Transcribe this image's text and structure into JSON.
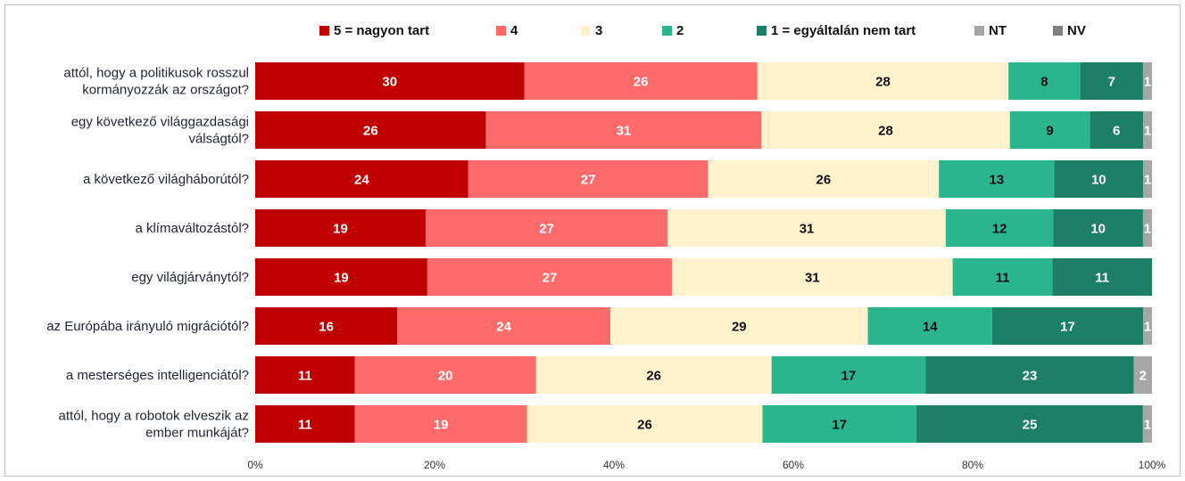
{
  "chart_data": {
    "type": "bar",
    "orientation": "horizontal",
    "stacked": true,
    "percent_stacked": true,
    "legend_position": "top",
    "categories": [
      "attól, hogy a politikusok rosszul kormányozzák az országot?",
      "egy következő világgazdasági válságtól?",
      "a következő világháborútól?",
      "a klímaváltozástól?",
      "egy világjárványtól?",
      "az Európába irányuló migrációtól?",
      "a mesterséges intelligenciától?",
      "attól, hogy a robotok elveszik az ember munkáját?"
    ],
    "category_lines": [
      [
        "attól, hogy a politikusok rosszul",
        "kormányozzák az országot?"
      ],
      [
        "egy következő világgazdasági",
        "válságtól?"
      ],
      [
        "a következő világháborútól?"
      ],
      [
        "a klímaváltozástól?"
      ],
      [
        "egy világjárványtól?"
      ],
      [
        "az Európába irányuló migrációtól?"
      ],
      [
        "a mesterséges intelligenciától?"
      ],
      [
        "attól, hogy a robotok elveszik az",
        "ember munkáját?"
      ]
    ],
    "series": [
      {
        "name": "5 = nagyon tart",
        "color": "#c00000",
        "label_color": "#ffffff",
        "values": [
          30,
          26,
          24,
          19,
          19,
          16,
          11,
          11
        ]
      },
      {
        "name": "4",
        "color": "#ff6b6b",
        "label_color": "#ffffff",
        "values": [
          26,
          31,
          27,
          27,
          27,
          24,
          20,
          19
        ]
      },
      {
        "name": "3",
        "color": "#fff2cc",
        "label_color": "#111111",
        "values": [
          28,
          28,
          26,
          31,
          31,
          29,
          26,
          26
        ]
      },
      {
        "name": "2",
        "color": "#2bb58c",
        "label_color": "#111111",
        "values": [
          8,
          9,
          13,
          12,
          11,
          14,
          17,
          17
        ]
      },
      {
        "name": "1 = egyáltalán nem tart",
        "color": "#1e7f67",
        "label_color": "#ffffff",
        "values": [
          7,
          6,
          10,
          10,
          11,
          17,
          23,
          25
        ]
      },
      {
        "name": "NT",
        "color": "#a6a6a6",
        "label_color": "#ffffff",
        "values": [
          1,
          1,
          1,
          1,
          null,
          1,
          2,
          1
        ]
      },
      {
        "name": "NV",
        "color": "#7f7f7f",
        "label_color": "#ffffff",
        "values": [
          null,
          null,
          null,
          null,
          null,
          null,
          null,
          null
        ]
      }
    ],
    "xlim": [
      0,
      100
    ],
    "x_ticks": [
      "0%",
      "20%",
      "40%",
      "60%",
      "80%",
      "100%"
    ],
    "title": "",
    "xlabel": "",
    "ylabel": ""
  }
}
